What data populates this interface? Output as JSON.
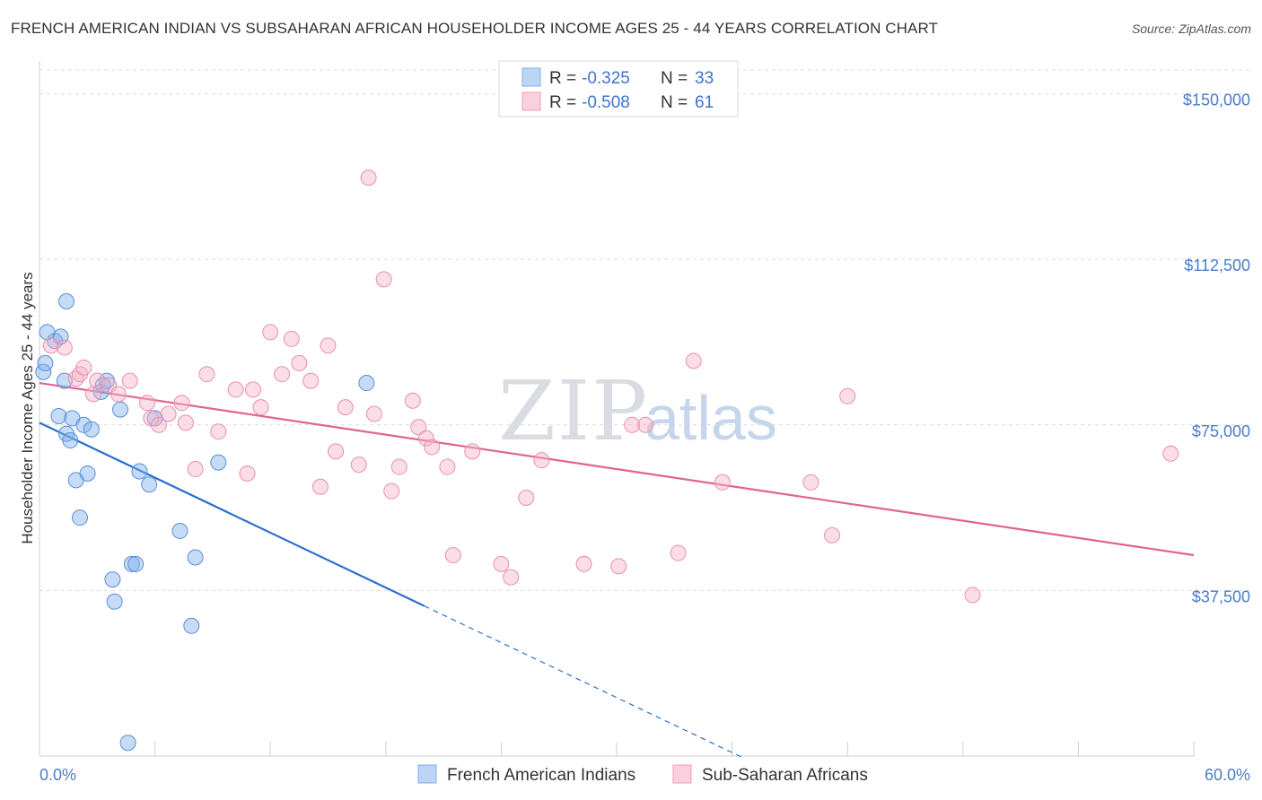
{
  "chart_data": {
    "type": "scatter",
    "title": "FRENCH AMERICAN INDIAN VS SUBSAHARAN AFRICAN HOUSEHOLDER INCOME AGES 25 - 44 YEARS CORRELATION CHART",
    "source": "Source: ZipAtlas.com",
    "ylabel": "Householder Income Ages 25 - 44 years",
    "xlabel": "",
    "xlim": [
      0,
      60
    ],
    "ylim": [
      0,
      155000
    ],
    "x_tick_labels": [
      "0.0%",
      "60.0%"
    ],
    "y_ticks": [
      37500,
      75000,
      112500,
      150000
    ],
    "y_tick_labels": [
      "$37,500",
      "$75,000",
      "$112,500",
      "$150,000"
    ],
    "watermark": {
      "part1": "ZIP",
      "part2": "atlas"
    },
    "legend": {
      "r_label": "R =",
      "n_label": "N =",
      "entries": [
        {
          "r": "-0.325",
          "n": "33"
        },
        {
          "r": "-0.508",
          "n": "61"
        }
      ]
    },
    "series": [
      {
        "name": "French American Indians",
        "color": "#7fb0ea",
        "stroke": "#5a8fd6",
        "trend_color": "#2a6fd0",
        "points": [
          [
            0.2,
            87000
          ],
          [
            0.3,
            89000
          ],
          [
            0.8,
            94000
          ],
          [
            1.0,
            77000
          ],
          [
            1.1,
            95000
          ],
          [
            1.3,
            85000
          ],
          [
            1.4,
            73000
          ],
          [
            1.4,
            103000
          ],
          [
            1.6,
            71500
          ],
          [
            1.7,
            76500
          ],
          [
            1.9,
            62500
          ],
          [
            2.1,
            54000
          ],
          [
            2.3,
            75000
          ],
          [
            2.5,
            64000
          ],
          [
            2.7,
            74000
          ],
          [
            3.2,
            82500
          ],
          [
            3.3,
            84000
          ],
          [
            3.5,
            85000
          ],
          [
            3.8,
            40000
          ],
          [
            3.9,
            35000
          ],
          [
            4.2,
            78500
          ],
          [
            4.6,
            3000
          ],
          [
            4.8,
            43500
          ],
          [
            5.0,
            43500
          ],
          [
            5.2,
            64500
          ],
          [
            5.7,
            61500
          ],
          [
            6.0,
            76500
          ],
          [
            7.3,
            51000
          ],
          [
            7.9,
            29500
          ],
          [
            8.1,
            45000
          ],
          [
            9.3,
            66500
          ],
          [
            17.0,
            84500
          ],
          [
            0.4,
            96000
          ]
        ]
      },
      {
        "name": "Sub-Saharan Africans",
        "color": "#f5b3c8",
        "stroke": "#e98fb0",
        "trend_color": "#e0648f",
        "points": [
          [
            0.6,
            93000
          ],
          [
            1.3,
            92500
          ],
          [
            1.9,
            85500
          ],
          [
            2.1,
            86500
          ],
          [
            2.3,
            88000
          ],
          [
            2.8,
            82000
          ],
          [
            3.0,
            85000
          ],
          [
            3.6,
            84000
          ],
          [
            4.1,
            82000
          ],
          [
            4.7,
            85000
          ],
          [
            5.6,
            80000
          ],
          [
            5.8,
            76500
          ],
          [
            6.2,
            75000
          ],
          [
            6.7,
            77500
          ],
          [
            7.4,
            80000
          ],
          [
            7.6,
            75500
          ],
          [
            8.1,
            65000
          ],
          [
            8.7,
            86500
          ],
          [
            9.3,
            73500
          ],
          [
            10.2,
            83000
          ],
          [
            10.8,
            64000
          ],
          [
            11.1,
            83000
          ],
          [
            11.5,
            79000
          ],
          [
            12.0,
            96000
          ],
          [
            12.6,
            86500
          ],
          [
            13.1,
            94500
          ],
          [
            13.5,
            89000
          ],
          [
            14.1,
            85000
          ],
          [
            14.6,
            61000
          ],
          [
            15.0,
            93000
          ],
          [
            15.4,
            69000
          ],
          [
            15.9,
            79000
          ],
          [
            16.6,
            66000
          ],
          [
            17.1,
            131000
          ],
          [
            17.4,
            77500
          ],
          [
            17.9,
            108000
          ],
          [
            18.3,
            60000
          ],
          [
            18.7,
            65500
          ],
          [
            19.4,
            80500
          ],
          [
            19.7,
            74500
          ],
          [
            20.1,
            72000
          ],
          [
            20.4,
            70000
          ],
          [
            21.2,
            65500
          ],
          [
            21.5,
            45500
          ],
          [
            22.5,
            69000
          ],
          [
            24.0,
            43500
          ],
          [
            24.5,
            40500
          ],
          [
            25.3,
            58500
          ],
          [
            26.1,
            67000
          ],
          [
            28.3,
            43500
          ],
          [
            30.1,
            43000
          ],
          [
            30.8,
            75000
          ],
          [
            31.5,
            75000
          ],
          [
            33.2,
            46000
          ],
          [
            34.0,
            89500
          ],
          [
            35.5,
            62000
          ],
          [
            40.1,
            62000
          ],
          [
            41.2,
            50000
          ],
          [
            42.0,
            81500
          ],
          [
            48.5,
            36500
          ],
          [
            58.8,
            68500
          ]
        ]
      }
    ],
    "trend_lines": [
      {
        "series": "French American Indians",
        "x0": 0,
        "y0": 75500,
        "x1": 20,
        "y1": 34000,
        "dash_to_x": 36.5
      },
      {
        "series": "Sub-Saharan Africans",
        "x0": 0,
        "y0": 84500,
        "x1": 60,
        "y1": 45500
      }
    ]
  }
}
